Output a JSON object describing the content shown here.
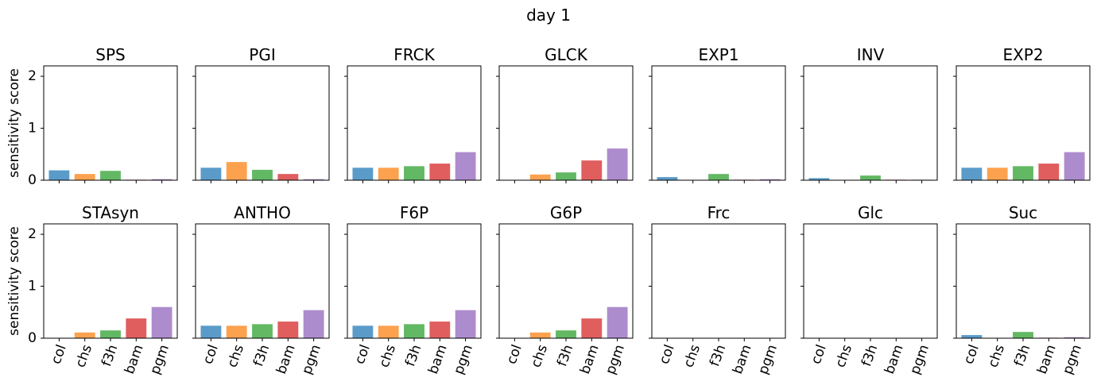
{
  "figure": {
    "title": "day 1"
  },
  "colors": {
    "col": "#5a9bc9",
    "chs": "#fca24f",
    "f3h": "#63b863",
    "bam": "#e05e5e",
    "pgm": "#ad8ccd"
  },
  "chart_data": [
    {
      "type": "bar",
      "title": "SPS",
      "categories": [
        "col",
        "chs",
        "f3h",
        "bam",
        "pgm"
      ],
      "values": [
        0.19,
        0.12,
        0.18,
        0.01,
        0.02
      ],
      "ylabel": "sensitivity score",
      "ylim": [
        0,
        2.2
      ],
      "yticks": [
        "0",
        "1",
        "2"
      ],
      "grid": false
    },
    {
      "type": "bar",
      "title": "PGI",
      "categories": [
        "col",
        "chs",
        "f3h",
        "bam",
        "pgm"
      ],
      "values": [
        0.24,
        0.35,
        0.2,
        0.12,
        0.02
      ],
      "ylabel": "",
      "ylim": [
        0,
        2.2
      ],
      "grid": false
    },
    {
      "type": "bar",
      "title": "FRCK",
      "categories": [
        "col",
        "chs",
        "f3h",
        "bam",
        "pgm"
      ],
      "values": [
        0.24,
        0.24,
        0.27,
        0.32,
        0.54
      ],
      "ylabel": "",
      "ylim": [
        0,
        2.2
      ],
      "grid": false
    },
    {
      "type": "bar",
      "title": "GLCK",
      "categories": [
        "col",
        "chs",
        "f3h",
        "bam",
        "pgm"
      ],
      "values": [
        0.0,
        0.11,
        0.15,
        0.38,
        0.61
      ],
      "ylabel": "",
      "ylim": [
        0,
        2.2
      ],
      "grid": false
    },
    {
      "type": "bar",
      "title": "EXP1",
      "categories": [
        "col",
        "chs",
        "f3h",
        "bam",
        "pgm"
      ],
      "values": [
        0.06,
        0.0,
        0.12,
        0.01,
        0.02
      ],
      "ylabel": "",
      "ylim": [
        0,
        2.2
      ],
      "grid": false
    },
    {
      "type": "bar",
      "title": "INV",
      "categories": [
        "col",
        "chs",
        "f3h",
        "bam",
        "pgm"
      ],
      "values": [
        0.04,
        0.0,
        0.09,
        0.01,
        0.01
      ],
      "ylabel": "",
      "ylim": [
        0,
        2.2
      ],
      "grid": false
    },
    {
      "type": "bar",
      "title": "EXP2",
      "categories": [
        "col",
        "chs",
        "f3h",
        "bam",
        "pgm"
      ],
      "values": [
        0.24,
        0.24,
        0.27,
        0.32,
        0.54
      ],
      "ylabel": "",
      "ylim": [
        0,
        2.2
      ],
      "grid": false
    },
    {
      "type": "bar",
      "title": "STAsyn",
      "categories": [
        "col",
        "chs",
        "f3h",
        "bam",
        "pgm"
      ],
      "values": [
        0.0,
        0.11,
        0.15,
        0.38,
        0.6
      ],
      "ylabel": "sensitivity score",
      "ylim": [
        0,
        2.2
      ],
      "yticks": [
        "0",
        "1",
        "2"
      ],
      "xticks": [
        "col",
        "chs",
        "f3h",
        "bam",
        "pgm"
      ],
      "grid": false
    },
    {
      "type": "bar",
      "title": "ANTHO",
      "categories": [
        "col",
        "chs",
        "f3h",
        "bam",
        "pgm"
      ],
      "values": [
        0.24,
        0.24,
        0.27,
        0.32,
        0.54
      ],
      "ylabel": "",
      "ylim": [
        0,
        2.2
      ],
      "xticks": [
        "col",
        "chs",
        "f3h",
        "bam",
        "pgm"
      ],
      "grid": false
    },
    {
      "type": "bar",
      "title": "F6P",
      "categories": [
        "col",
        "chs",
        "f3h",
        "bam",
        "pgm"
      ],
      "values": [
        0.24,
        0.24,
        0.27,
        0.32,
        0.54
      ],
      "ylabel": "",
      "ylim": [
        0,
        2.2
      ],
      "xticks": [
        "col",
        "chs",
        "f3h",
        "bam",
        "pgm"
      ],
      "grid": false
    },
    {
      "type": "bar",
      "title": "G6P",
      "categories": [
        "col",
        "chs",
        "f3h",
        "bam",
        "pgm"
      ],
      "values": [
        0.0,
        0.11,
        0.15,
        0.38,
        0.6
      ],
      "ylabel": "",
      "ylim": [
        0,
        2.2
      ],
      "xticks": [
        "col",
        "chs",
        "f3h",
        "bam",
        "pgm"
      ],
      "grid": false
    },
    {
      "type": "bar",
      "title": "Frc",
      "categories": [
        "col",
        "chs",
        "f3h",
        "bam",
        "pgm"
      ],
      "values": [
        0,
        0,
        0,
        0,
        0
      ],
      "ylabel": "",
      "ylim": [
        0,
        2.2
      ],
      "xticks": [
        "col",
        "chs",
        "f3h",
        "bam",
        "pgm"
      ],
      "grid": false
    },
    {
      "type": "bar",
      "title": "Glc",
      "categories": [
        "col",
        "chs",
        "f3h",
        "bam",
        "pgm"
      ],
      "values": [
        0,
        0,
        0,
        0,
        0
      ],
      "ylabel": "",
      "ylim": [
        0,
        2.2
      ],
      "xticks": [
        "col",
        "chs",
        "f3h",
        "bam",
        "pgm"
      ],
      "grid": false
    },
    {
      "type": "bar",
      "title": "Suc",
      "categories": [
        "col",
        "chs",
        "f3h",
        "bam",
        "pgm"
      ],
      "values": [
        0.06,
        0.0,
        0.12,
        0.01,
        0.02
      ],
      "ylabel": "",
      "ylim": [
        0,
        2.2
      ],
      "xticks": [
        "col",
        "chs",
        "f3h",
        "bam",
        "pgm"
      ],
      "grid": false
    }
  ]
}
